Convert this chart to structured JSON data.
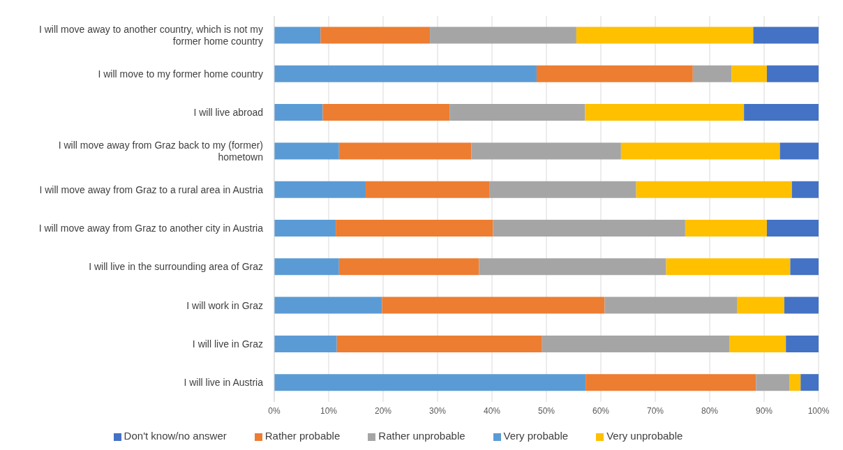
{
  "chart_data": {
    "type": "bar",
    "orientation": "horizontal",
    "stacked": true,
    "categories": [
      "I will move away to another country, which is not my former home country",
      "I will move to my former home country",
      "I will live abroad",
      "I will move away from Graz back to my (former) hometown",
      "I will move away from Graz to a rural area in Austria",
      "I will move away from Graz to another city in Austria",
      "I will live in the surrounding area of Graz",
      "I will work in Graz",
      "I will live in Graz",
      "I will live in Austria"
    ],
    "series": [
      {
        "name": "Very probable",
        "color": "#5b9bd5",
        "values": [
          8.5,
          48.2,
          8.9,
          11.9,
          16.8,
          11.3,
          11.9,
          19.8,
          11.5,
          57.2
        ]
      },
      {
        "name": "Rather probable",
        "color": "#ed7d31",
        "values": [
          20.1,
          28.7,
          23.3,
          24.3,
          22.7,
          28.9,
          25.7,
          40.9,
          37.7,
          31.3
        ]
      },
      {
        "name": "Rather unprobable",
        "color": "#a5a5a5",
        "values": [
          26.9,
          7.1,
          24.9,
          27.5,
          27.0,
          35.3,
          34.4,
          24.3,
          34.4,
          6.2
        ]
      },
      {
        "name": "Very unprobable",
        "color": "#ffc000",
        "values": [
          32.5,
          6.5,
          29.2,
          29.2,
          28.6,
          15.0,
          22.8,
          8.7,
          10.4,
          2.0
        ]
      },
      {
        "name": "Don't know/no answer",
        "color": "#4472c4",
        "values": [
          12.0,
          9.5,
          13.7,
          7.1,
          4.9,
          9.5,
          5.2,
          6.3,
          6.0,
          3.3
        ]
      }
    ],
    "xlim": [
      0,
      100
    ],
    "xticks": [
      {
        "value": 0,
        "label": "0%"
      },
      {
        "value": 10,
        "label": "10%"
      },
      {
        "value": 20,
        "label": "20%"
      },
      {
        "value": 30,
        "label": "30%"
      },
      {
        "value": 40,
        "label": "40%"
      },
      {
        "value": 50,
        "label": "50%"
      },
      {
        "value": 60,
        "label": "60%"
      },
      {
        "value": 70,
        "label": "70%"
      },
      {
        "value": 80,
        "label": "80%"
      },
      {
        "value": 90,
        "label": "90%"
      },
      {
        "value": 100,
        "label": "100%"
      }
    ],
    "grid": "x",
    "legend": "bottom"
  }
}
